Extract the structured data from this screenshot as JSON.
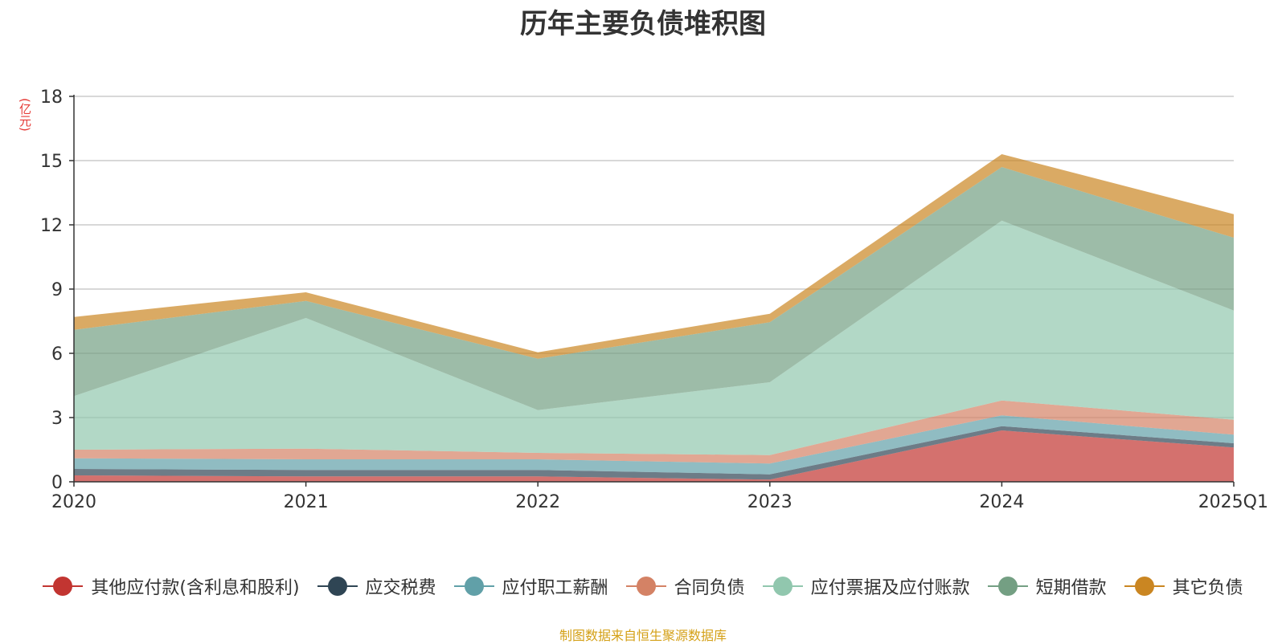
{
  "chart_data": {
    "type": "area",
    "stacked": true,
    "title": "历年主要负债堆积图",
    "ylabel": "(亿元)",
    "xlabel": "",
    "categories": [
      "2020",
      "2021",
      "2022",
      "2023",
      "2024",
      "2025Q1"
    ],
    "ylim": [
      0,
      18
    ],
    "yticks": [
      0,
      3,
      6,
      9,
      12,
      15,
      18
    ],
    "grid": true,
    "legend_position": "bottom",
    "series": [
      {
        "name": "其他应付款(含利息和股利)",
        "color": "#c23531",
        "values": [
          0.3,
          0.25,
          0.25,
          0.1,
          2.4,
          1.6
        ]
      },
      {
        "name": "应交税费",
        "color": "#2f4554",
        "values": [
          0.3,
          0.3,
          0.3,
          0.25,
          0.2,
          0.2
        ]
      },
      {
        "name": "应付职工薪酬",
        "color": "#61a0a8",
        "values": [
          0.5,
          0.5,
          0.5,
          0.5,
          0.5,
          0.4
        ]
      },
      {
        "name": "合同负债",
        "color": "#d48265",
        "values": [
          0.4,
          0.5,
          0.3,
          0.4,
          0.7,
          0.7
        ]
      },
      {
        "name": "应付票据及应付账款",
        "color": "#91c7ae",
        "values": [
          2.5,
          6.1,
          2.0,
          3.4,
          8.4,
          5.1
        ]
      },
      {
        "name": "短期借款",
        "color": "#749f83",
        "values": [
          3.1,
          0.8,
          2.4,
          2.8,
          2.5,
          3.4
        ]
      },
      {
        "name": "其它负债",
        "color": "#ca8622",
        "values": [
          0.6,
          0.4,
          0.3,
          0.4,
          0.6,
          1.1
        ]
      }
    ]
  },
  "source_note": "制图数据来自恒生聚源数据库"
}
